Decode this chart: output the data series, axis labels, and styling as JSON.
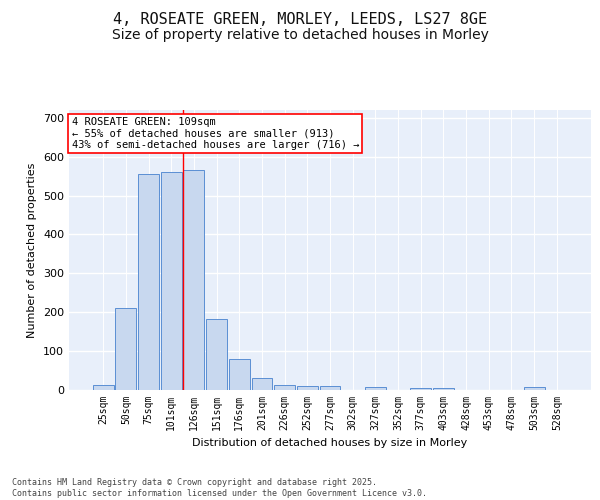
{
  "title_line1": "4, ROSEATE GREEN, MORLEY, LEEDS, LS27 8GE",
  "title_line2": "Size of property relative to detached houses in Morley",
  "xlabel": "Distribution of detached houses by size in Morley",
  "ylabel": "Number of detached properties",
  "bar_color": "#c8d8ef",
  "bar_edge_color": "#5b8fd4",
  "background_color": "#e8effa",
  "grid_color": "#ffffff",
  "categories": [
    "25sqm",
    "50sqm",
    "75sqm",
    "101sqm",
    "126sqm",
    "151sqm",
    "176sqm",
    "201sqm",
    "226sqm",
    "252sqm",
    "277sqm",
    "302sqm",
    "327sqm",
    "352sqm",
    "377sqm",
    "403sqm",
    "428sqm",
    "453sqm",
    "478sqm",
    "503sqm",
    "528sqm"
  ],
  "values": [
    12,
    210,
    555,
    560,
    565,
    182,
    80,
    30,
    12,
    10,
    10,
    0,
    8,
    0,
    5,
    5,
    0,
    0,
    0,
    8,
    0
  ],
  "ylim": [
    0,
    720
  ],
  "yticks": [
    0,
    100,
    200,
    300,
    400,
    500,
    600,
    700
  ],
  "annotation_text": "4 ROSEATE GREEN: 109sqm\n← 55% of detached houses are smaller (913)\n43% of semi-detached houses are larger (716) →",
  "red_line_x": 3.5,
  "footer_text": "Contains HM Land Registry data © Crown copyright and database right 2025.\nContains public sector information licensed under the Open Government Licence v3.0.",
  "title_fontsize": 11,
  "subtitle_fontsize": 10,
  "axis_label_fontsize": 8,
  "tick_fontsize": 7,
  "annotation_fontsize": 7.5,
  "footer_fontsize": 6
}
